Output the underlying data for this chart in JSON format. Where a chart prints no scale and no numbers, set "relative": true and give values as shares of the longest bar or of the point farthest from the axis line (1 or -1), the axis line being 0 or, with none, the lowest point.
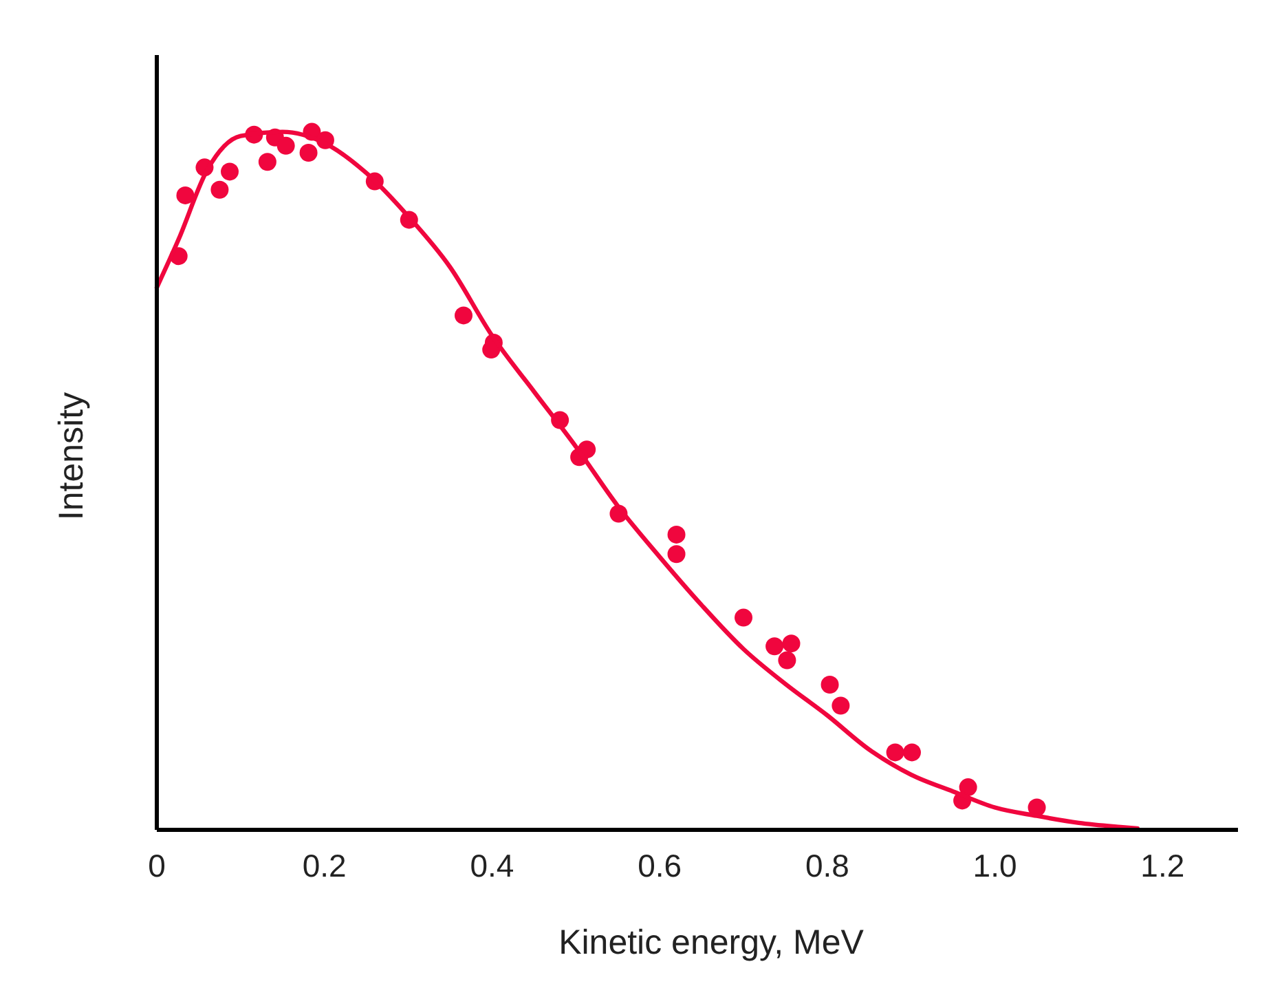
{
  "chart_data": {
    "type": "scatter",
    "xlabel": "Kinetic energy, MeV",
    "ylabel": "Intensity",
    "relative": true,
    "xlim": [
      0,
      1.29
    ],
    "xticks": [
      {
        "value": 0,
        "label": "0"
      },
      {
        "value": 0.2,
        "label": "0.2"
      },
      {
        "value": 0.4,
        "label": "0.4"
      },
      {
        "value": 0.6,
        "label": "0.6"
      },
      {
        "value": 0.8,
        "label": "0.8"
      },
      {
        "value": 1.0,
        "label": "1.0"
      },
      {
        "value": 1.2,
        "label": "1.2"
      }
    ],
    "series": [
      {
        "marker": "circle",
        "color": "#f0063e",
        "x": [
          0.026,
          0.034,
          0.057,
          0.075,
          0.087,
          0.116,
          0.132,
          0.141,
          0.154,
          0.185,
          0.181,
          0.201,
          0.26,
          0.301,
          0.366,
          0.402,
          0.399,
          0.481,
          0.513,
          0.504,
          0.551,
          0.62,
          0.62,
          0.7,
          0.737,
          0.757,
          0.752,
          0.803,
          0.816,
          0.881,
          0.901,
          0.968,
          0.961,
          1.05
        ],
        "values": [
          0.822,
          0.909,
          0.949,
          0.917,
          0.943,
          0.996,
          0.957,
          0.992,
          0.98,
          1.0,
          0.97,
          0.988,
          0.929,
          0.874,
          0.737,
          0.698,
          0.688,
          0.587,
          0.545,
          0.534,
          0.453,
          0.423,
          0.395,
          0.304,
          0.263,
          0.267,
          0.243,
          0.208,
          0.178,
          0.111,
          0.111,
          0.061,
          0.042,
          0.032
        ]
      },
      {
        "type": "line",
        "marker": "none",
        "color": "#f0063e",
        "x": [
          0,
          0.026,
          0.06,
          0.1,
          0.15,
          0.2,
          0.25,
          0.3,
          0.35,
          0.4,
          0.45,
          0.5,
          0.55,
          0.6,
          0.65,
          0.7,
          0.75,
          0.8,
          0.85,
          0.9,
          0.95,
          1.0,
          1.05,
          1.1,
          1.15,
          1.17
        ],
        "values": [
          0.777,
          0.846,
          0.945,
          0.994,
          1.0,
          0.984,
          0.941,
          0.879,
          0.806,
          0.708,
          0.628,
          0.549,
          0.464,
          0.391,
          0.322,
          0.259,
          0.209,
          0.164,
          0.115,
          0.079,
          0.055,
          0.032,
          0.02,
          0.01,
          0.004,
          0.002
        ]
      }
    ]
  }
}
